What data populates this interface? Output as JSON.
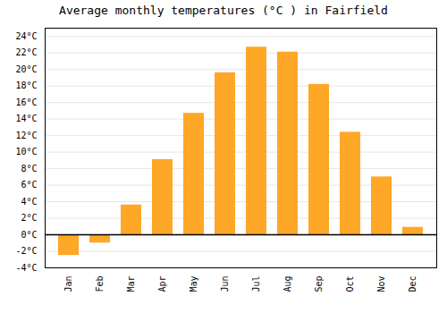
{
  "chart_data": {
    "type": "bar",
    "title": "Average monthly temperatures (°C ) in Fairfield",
    "categories": [
      "Jan",
      "Feb",
      "Mar",
      "Apr",
      "May",
      "Jun",
      "Jul",
      "Aug",
      "Sep",
      "Oct",
      "Nov",
      "Dec"
    ],
    "values": [
      -2.5,
      -1.0,
      3.6,
      9.1,
      14.7,
      19.6,
      22.7,
      22.1,
      18.2,
      12.4,
      7.0,
      0.9
    ],
    "color": "#FFA726",
    "ylim": [
      -4,
      25
    ],
    "yticks": [
      {
        "value": -4,
        "label": "-4°C"
      },
      {
        "value": -2,
        "label": "-2°C"
      },
      {
        "value": 0,
        "label": "0°C"
      },
      {
        "value": 2,
        "label": "2°C"
      },
      {
        "value": 4,
        "label": "4°C"
      },
      {
        "value": 6,
        "label": "6°C"
      },
      {
        "value": 8,
        "label": "8°C"
      },
      {
        "value": 10,
        "label": "10°C"
      },
      {
        "value": 12,
        "label": "12°C"
      },
      {
        "value": 14,
        "label": "14°C"
      },
      {
        "value": 16,
        "label": "16°C"
      },
      {
        "value": 18,
        "label": "18°C"
      },
      {
        "value": 20,
        "label": "20°C"
      },
      {
        "value": 22,
        "label": "22°C"
      },
      {
        "value": 24,
        "label": "24°C"
      }
    ],
    "grid": true
  }
}
